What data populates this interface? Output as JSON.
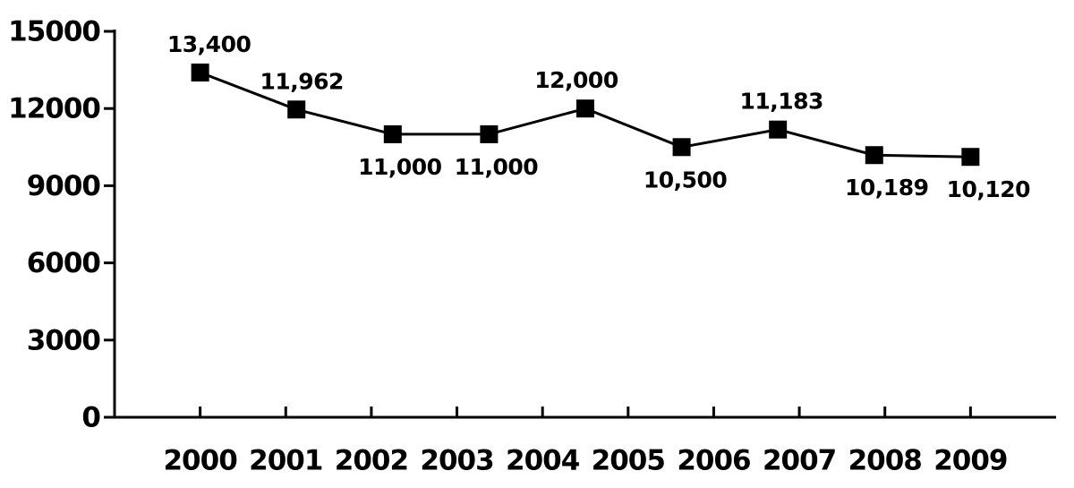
{
  "chart_data": {
    "type": "line",
    "x": [
      2000,
      2001.125,
      2002.25,
      2003.375,
      2004.5,
      2005.625,
      2006.75,
      2007.875,
      2009
    ],
    "values": [
      13400,
      11962,
      11000,
      11000,
      12000,
      10500,
      11183,
      10189,
      10120
    ],
    "value_labels": [
      "13,400",
      "11,962",
      "11,000",
      "11,000",
      "12,000",
      "10,500",
      "11,183",
      "10,189",
      "10,120"
    ],
    "color": "#000000",
    "xlim": [
      1999,
      2010
    ],
    "xticks": [
      2000,
      2001,
      2002,
      2003,
      2004,
      2005,
      2006,
      2007,
      2008,
      2009
    ],
    "ylim": [
      0,
      15000
    ],
    "yticks": [
      0,
      3000,
      6000,
      9000,
      12000,
      15000
    ]
  }
}
